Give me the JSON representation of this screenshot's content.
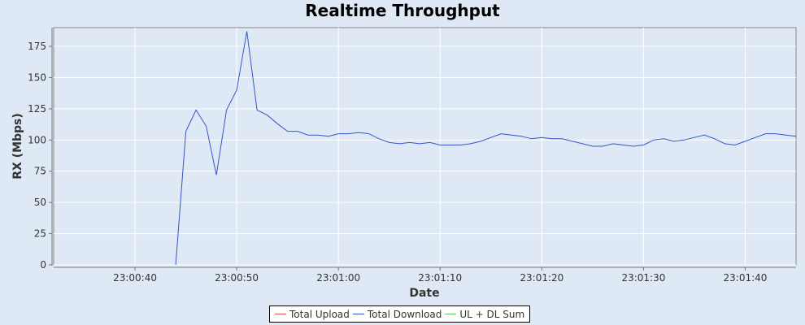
{
  "chart_data": {
    "type": "line",
    "title": "Realtime Throughput",
    "xlabel": "Date",
    "ylabel": "RX (Mbps)",
    "ylim": [
      0,
      190
    ],
    "y_ticks": [
      0,
      25,
      50,
      75,
      100,
      125,
      150,
      175
    ],
    "xlim": [
      "23:00:32",
      "23:01:45"
    ],
    "x_ticks": [
      "23:00:40",
      "23:00:50",
      "23:01:00",
      "23:01:10",
      "23:01:20",
      "23:01:30",
      "23:01:40"
    ],
    "grid": true,
    "legend_position": "bottom-center",
    "series": [
      {
        "name": "Total Upload",
        "color": "#e05050",
        "x": [],
        "values": []
      },
      {
        "name": "Total Download",
        "color": "#3355cc",
        "x": [
          "23:00:44",
          "23:00:45",
          "23:00:46",
          "23:00:47",
          "23:00:48",
          "23:00:49",
          "23:00:50",
          "23:00:51",
          "23:00:52",
          "23:00:53",
          "23:00:54",
          "23:00:55",
          "23:00:56",
          "23:00:57",
          "23:00:58",
          "23:00:59",
          "23:01:00",
          "23:01:01",
          "23:01:02",
          "23:01:03",
          "23:01:04",
          "23:01:05",
          "23:01:06",
          "23:01:07",
          "23:01:08",
          "23:01:09",
          "23:01:10",
          "23:01:11",
          "23:01:12",
          "23:01:13",
          "23:01:14",
          "23:01:15",
          "23:01:16",
          "23:01:17",
          "23:01:18",
          "23:01:19",
          "23:01:20",
          "23:01:21",
          "23:01:22",
          "23:01:23",
          "23:01:24",
          "23:01:25",
          "23:01:26",
          "23:01:27",
          "23:01:28",
          "23:01:29",
          "23:01:30",
          "23:01:31",
          "23:01:32",
          "23:01:33",
          "23:01:34",
          "23:01:35",
          "23:01:36",
          "23:01:37",
          "23:01:38",
          "23:01:39",
          "23:01:40",
          "23:01:41",
          "23:01:42",
          "23:01:43",
          "23:01:44",
          "23:01:45"
        ],
        "values": [
          0,
          107,
          124,
          111,
          72,
          124,
          140,
          187,
          124,
          120,
          113,
          107,
          107,
          104,
          104,
          103,
          105,
          105,
          106,
          105,
          101,
          98,
          97,
          98,
          97,
          98,
          96,
          96,
          96,
          97,
          99,
          102,
          105,
          104,
          103,
          101,
          102,
          101,
          101,
          99,
          97,
          95,
          95,
          97,
          96,
          95,
          96,
          100,
          101,
          99,
          100,
          102,
          104,
          101,
          97,
          96,
          99,
          102,
          105,
          105,
          104,
          103
        ]
      },
      {
        "name": "UL + DL Sum",
        "color": "#55cc55",
        "x": [],
        "values": []
      }
    ]
  }
}
